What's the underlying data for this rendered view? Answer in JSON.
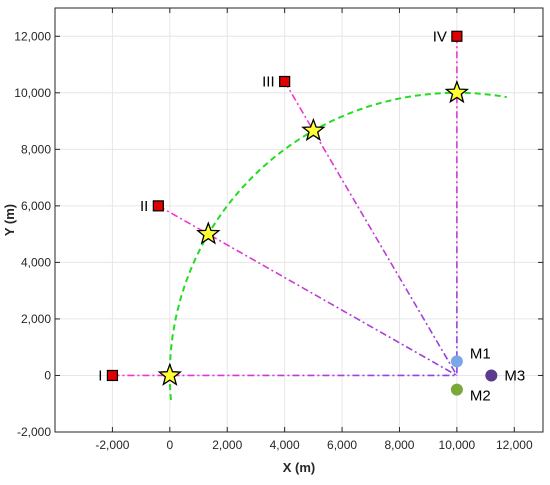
{
  "chart_data": {
    "type": "scatter",
    "title": "",
    "xlabel": "X (m)",
    "ylabel": "Y (m)",
    "xlim": [
      -4000,
      13000
    ],
    "ylim": [
      -2000,
      13000
    ],
    "grid": true,
    "x_ticks": [
      {
        "value": -2000,
        "label": "-2,000"
      },
      {
        "value": 0,
        "label": "0"
      },
      {
        "value": 2000,
        "label": "2,000"
      },
      {
        "value": 4000,
        "label": "4,000"
      },
      {
        "value": 6000,
        "label": "6,000"
      },
      {
        "value": 8000,
        "label": "8,000"
      },
      {
        "value": 10000,
        "label": "10,000"
      },
      {
        "value": 12000,
        "label": "12,000"
      }
    ],
    "y_ticks": [
      {
        "value": -2000,
        "label": "-2,000"
      },
      {
        "value": 0,
        "label": "0"
      },
      {
        "value": 2000,
        "label": "2,000"
      },
      {
        "value": 4000,
        "label": "4,000"
      },
      {
        "value": 6000,
        "label": "6,000"
      },
      {
        "value": 8000,
        "label": "8,000"
      },
      {
        "value": 10000,
        "label": "10,000"
      },
      {
        "value": 12000,
        "label": "12,000"
      }
    ],
    "arc": {
      "center": [
        10000,
        0
      ],
      "radius": 10000,
      "start_deg": -5,
      "end_deg": 100,
      "color": "#22dd22"
    },
    "sources": [
      {
        "label": "I",
        "x": -2000,
        "y": 0
      },
      {
        "label": "II",
        "x": -400,
        "y": 6000
      },
      {
        "label": "III",
        "x": 4000,
        "y": 10400
      },
      {
        "label": "IV",
        "x": 10000,
        "y": 12000
      }
    ],
    "stars": [
      {
        "x": 0,
        "y": 0
      },
      {
        "x": 1340,
        "y": 5000
      },
      {
        "x": 5000,
        "y": 8660
      },
      {
        "x": 10000,
        "y": 10000
      }
    ],
    "receivers": [
      {
        "label": "M1",
        "x": 10000,
        "y": 500,
        "color": "#7ba6e8"
      },
      {
        "label": "M2",
        "x": 10000,
        "y": -500,
        "color": "#7aa83a"
      },
      {
        "label": "M3",
        "x": 11200,
        "y": 0,
        "color": "#5b3b8c"
      }
    ],
    "colors": {
      "source_fill": "#e00000",
      "star_fill": "#ffff33",
      "path_near": "#ff33cc",
      "path_far": "#8844dd",
      "grid": "#e6e6e6",
      "axis": "#262626"
    }
  }
}
